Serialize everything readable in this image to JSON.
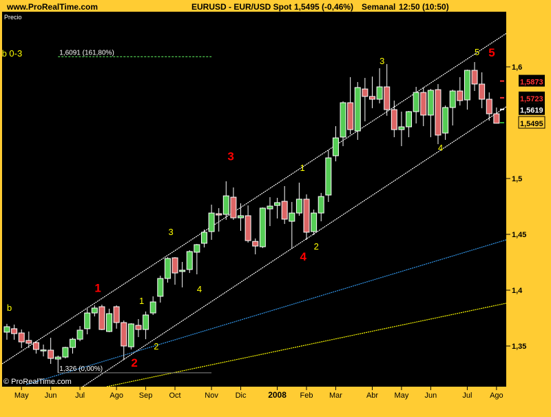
{
  "header": {
    "site": "www.ProRealTime.com",
    "instrument": "EURUSD - EUR/USD Spot",
    "quote": "1,5495 (-0,46%)",
    "timeframe": "Semanal",
    "time": "12:50 (10:50)"
  },
  "panel_label": "Precio",
  "copyright": "© ProRealTime.com",
  "colors": {
    "background": "#FFCC33",
    "plot": "#000000",
    "up": "#55CC55",
    "down": "#DD6666",
    "channel": "#FFFFFF",
    "blue_line": "#3399EE",
    "yellow_line": "#FFFF00",
    "wave_minor": "#FFFF00",
    "wave_major": "#FF0000"
  },
  "chart_data": {
    "type": "candlestick",
    "xlabel": "",
    "ylabel": "",
    "ylim": [
      1.3136,
      1.6473
    ],
    "yticks": [
      {
        "value": 1.6,
        "label": "1,6"
      },
      {
        "value": 1.5,
        "label": "1,5"
      },
      {
        "value": 1.45,
        "label": "1,45"
      },
      {
        "value": 1.4,
        "label": "1,4"
      },
      {
        "value": 1.35,
        "label": "1,35"
      }
    ],
    "xticks": [
      {
        "index": 2,
        "label": "May"
      },
      {
        "index": 6,
        "label": "Jun"
      },
      {
        "index": 10,
        "label": "Jul"
      },
      {
        "index": 15,
        "label": "Ago"
      },
      {
        "index": 19,
        "label": "Sep"
      },
      {
        "index": 23,
        "label": "Oct"
      },
      {
        "index": 28,
        "label": "Nov"
      },
      {
        "index": 32,
        "label": "Dic"
      },
      {
        "index": 37,
        "label": "2008",
        "bold": true
      },
      {
        "index": 41,
        "label": "Feb"
      },
      {
        "index": 45,
        "label": "Mar"
      },
      {
        "index": 50,
        "label": "Abr"
      },
      {
        "index": 54,
        "label": "May"
      },
      {
        "index": 58,
        "label": "Jun"
      },
      {
        "index": 63,
        "label": "Jul"
      },
      {
        "index": 67,
        "label": "Ago"
      }
    ],
    "candles_ohlc": [
      [
        1.3624,
        1.3698,
        1.3556,
        1.3673
      ],
      [
        1.3655,
        1.3692,
        1.3556,
        1.3611
      ],
      [
        1.3617,
        1.3648,
        1.3482,
        1.3537
      ],
      [
        1.355,
        1.363,
        1.3482,
        1.3525
      ],
      [
        1.3531,
        1.3543,
        1.3432,
        1.3469
      ],
      [
        1.3463,
        1.3513,
        1.3407,
        1.3465
      ],
      [
        1.3463,
        1.3574,
        1.334,
        1.3389
      ],
      [
        1.3383,
        1.3414,
        1.326,
        1.3401
      ],
      [
        1.3401,
        1.3493,
        1.3389,
        1.3487
      ],
      [
        1.3487,
        1.3574,
        1.3432,
        1.3561
      ],
      [
        1.3561,
        1.3679,
        1.3543,
        1.3642
      ],
      [
        1.3655,
        1.3834,
        1.3605,
        1.3796
      ],
      [
        1.3796,
        1.3864,
        1.3765,
        1.384
      ],
      [
        1.3852,
        1.387,
        1.3642,
        1.3648
      ],
      [
        1.363,
        1.3834,
        1.3624,
        1.379
      ],
      [
        1.3852,
        1.3864,
        1.3655,
        1.371
      ],
      [
        1.371,
        1.3728,
        1.3376,
        1.35
      ],
      [
        1.3493,
        1.3704,
        1.3469,
        1.3698
      ],
      [
        1.3685,
        1.3741,
        1.358,
        1.3648
      ],
      [
        1.3648,
        1.3809,
        1.3561,
        1.3778
      ],
      [
        1.3796,
        1.3945,
        1.3778,
        1.3895
      ],
      [
        1.3945,
        1.413,
        1.3889,
        1.4105
      ],
      [
        1.4105,
        1.4296,
        1.4068,
        1.4284
      ],
      [
        1.429,
        1.4296,
        1.4049,
        1.4154
      ],
      [
        1.4167,
        1.4253,
        1.4025,
        1.4179
      ],
      [
        1.4185,
        1.4358,
        1.4154,
        1.4346
      ],
      [
        1.434,
        1.4414,
        1.4142,
        1.4408
      ],
      [
        1.442,
        1.4543,
        1.4383,
        1.4519
      ],
      [
        1.4525,
        1.4766,
        1.4451,
        1.4691
      ],
      [
        1.4685,
        1.4735,
        1.4525,
        1.4673
      ],
      [
        1.4679,
        1.4975,
        1.463,
        1.4845
      ],
      [
        1.4833,
        1.492,
        1.463,
        1.4648
      ],
      [
        1.4648,
        1.4778,
        1.4531,
        1.4667
      ],
      [
        1.4667,
        1.4759,
        1.4426,
        1.4444
      ],
      [
        1.4437,
        1.4463,
        1.4321,
        1.4395
      ],
      [
        1.4389,
        1.4741,
        1.4377,
        1.4735
      ],
      [
        1.4728,
        1.4833,
        1.4574,
        1.4753
      ],
      [
        1.4759,
        1.4827,
        1.4642,
        1.4784
      ],
      [
        1.4796,
        1.4932,
        1.4593,
        1.4636
      ],
      [
        1.4617,
        1.479,
        1.437,
        1.4691
      ],
      [
        1.4691,
        1.4963,
        1.4667,
        1.4815
      ],
      [
        1.4815,
        1.4858,
        1.4451,
        1.4519
      ],
      [
        1.4525,
        1.4722,
        1.4494,
        1.4691
      ],
      [
        1.4691,
        1.4871,
        1.4617,
        1.4839
      ],
      [
        1.4852,
        1.5253,
        1.479,
        1.5185
      ],
      [
        1.5204,
        1.5469,
        1.5154,
        1.5364
      ],
      [
        1.5371,
        1.5691,
        1.529,
        1.5679
      ],
      [
        1.5679,
        1.5908,
        1.5395,
        1.5438
      ],
      [
        1.5426,
        1.5864,
        1.5346,
        1.5815
      ],
      [
        1.5802,
        1.5901,
        1.5512,
        1.5735
      ],
      [
        1.5735,
        1.5913,
        1.563,
        1.571
      ],
      [
        1.571,
        1.5988,
        1.5673,
        1.5821
      ],
      [
        1.5821,
        1.6025,
        1.5562,
        1.5617
      ],
      [
        1.5617,
        1.5698,
        1.537,
        1.5438
      ],
      [
        1.5438,
        1.5599,
        1.529,
        1.5463
      ],
      [
        1.5463,
        1.5605,
        1.537,
        1.5599
      ],
      [
        1.5599,
        1.5821,
        1.5493,
        1.5771
      ],
      [
        1.5771,
        1.5815,
        1.5469,
        1.5568
      ],
      [
        1.5568,
        1.5802,
        1.537,
        1.579
      ],
      [
        1.5796,
        1.5846,
        1.5308,
        1.5389
      ],
      [
        1.5407,
        1.5654,
        1.5346,
        1.5636
      ],
      [
        1.5636,
        1.5796,
        1.5475,
        1.5784
      ],
      [
        1.5784,
        1.5908,
        1.5654,
        1.5698
      ],
      [
        1.5704,
        1.5975,
        1.5617,
        1.5969
      ],
      [
        1.5969,
        1.6043,
        1.5784,
        1.5846
      ],
      [
        1.5846,
        1.5951,
        1.563,
        1.571
      ],
      [
        1.571,
        1.5771,
        1.5518,
        1.558
      ],
      [
        1.558,
        1.5636,
        1.5493,
        1.5495
      ]
    ],
    "trendlines": [
      {
        "kind": "channel-upper",
        "color": "#FFFFFF",
        "from": [
          -0.66,
          1.334
        ],
        "to": [
          69.56,
          1.6352
        ]
      },
      {
        "kind": "channel-lower",
        "color": "#FFFFFF",
        "from": [
          10.37,
          1.3136
        ],
        "to": [
          68.33,
          1.5642
        ]
      },
      {
        "kind": "blue",
        "color": "#3399EE",
        "from": [
          2.64,
          1.3154
        ],
        "to": [
          68.33,
          1.4451
        ]
      },
      {
        "kind": "yellow",
        "color": "#FFFF00",
        "from": [
          13.67,
          1.3136
        ],
        "to": [
          68.33,
          1.3883
        ]
      }
    ],
    "levels": [
      {
        "price": 1.6091,
        "label": "1,6091 (161,80%)",
        "color": "#66FF66",
        "dashed": true,
        "from_index": 7,
        "to_index": 28
      },
      {
        "price": 1.326,
        "label": "1,326 (0,00%)",
        "color": "#888888",
        "dashed": false,
        "from_index": 7,
        "to_index": 28
      }
    ],
    "wave_labels": [
      {
        "text": "b 0-3",
        "index": -0.7,
        "price": 1.6093,
        "color": "#FFFF00",
        "size": "m"
      },
      {
        "text": "b",
        "index": 0,
        "price": 1.3815,
        "color": "#FFFF00",
        "size": "m"
      },
      {
        "text": "1",
        "index": 12,
        "price": 1.3984,
        "color": "#FF0000",
        "size": "l"
      },
      {
        "text": "2",
        "index": 17,
        "price": 1.3315,
        "color": "#FF0000",
        "size": "l"
      },
      {
        "text": "3",
        "index": 30.2,
        "price": 1.5163,
        "color": "#FF0000",
        "size": "l"
      },
      {
        "text": "4",
        "index": 40.1,
        "price": 1.4266,
        "color": "#FF0000",
        "size": "l"
      },
      {
        "text": "5",
        "index": 65.9,
        "price": 1.6093,
        "color": "#FF0000",
        "size": "l"
      },
      {
        "text": "1",
        "index": 18.1,
        "price": 1.3877,
        "color": "#FFFF00",
        "size": "m"
      },
      {
        "text": "2",
        "index": 20.1,
        "price": 1.3469,
        "color": "#FFFF00",
        "size": "m"
      },
      {
        "text": "3",
        "index": 22.1,
        "price": 1.4494,
        "color": "#FFFF00",
        "size": "m"
      },
      {
        "text": "4",
        "index": 26,
        "price": 1.3982,
        "color": "#FFFF00",
        "size": "m"
      },
      {
        "text": "1",
        "index": 40.1,
        "price": 1.5068,
        "color": "#FFFF00",
        "size": "m"
      },
      {
        "text": "2",
        "index": 42,
        "price": 1.4364,
        "color": "#FFFF00",
        "size": "m"
      },
      {
        "text": "3",
        "index": 51,
        "price": 1.6025,
        "color": "#FFFF00",
        "size": "m"
      },
      {
        "text": "4",
        "index": 59,
        "price": 1.5248,
        "color": "#FFFF00",
        "size": "m"
      },
      {
        "text": "5",
        "index": 64,
        "price": 1.6105,
        "color": "#FFFF00",
        "size": "m"
      }
    ],
    "price_boxes": [
      {
        "label": "1,5873",
        "price": 1.5873,
        "fg": "#FF3333",
        "bg": "#000000",
        "marker": "#FF3333"
      },
      {
        "label": "1,5723",
        "price": 1.5723,
        "fg": "#FF3333",
        "bg": "#000000",
        "marker": "#FF3333"
      },
      {
        "label": "1,5619",
        "price": 1.5619,
        "fg": "#FFFFFF",
        "bg": "#000000",
        "marker": "#FFFFFF"
      },
      {
        "label": "1,5495",
        "price": 1.5495,
        "fg": "#000000",
        "bg": "#FFCC33",
        "marker": "#33AA33",
        "current": true
      }
    ]
  }
}
